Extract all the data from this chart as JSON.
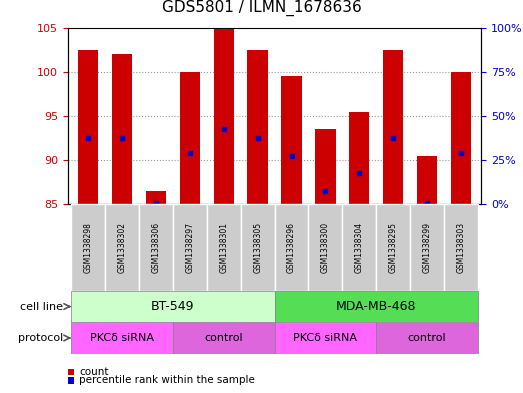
{
  "title": "GDS5801 / ILMN_1678636",
  "samples": [
    "GSM1338298",
    "GSM1338302",
    "GSM1338306",
    "GSM1338297",
    "GSM1338301",
    "GSM1338305",
    "GSM1338296",
    "GSM1338300",
    "GSM1338304",
    "GSM1338295",
    "GSM1338299",
    "GSM1338303"
  ],
  "bar_heights": [
    102.5,
    102.0,
    86.5,
    100.0,
    105.0,
    102.5,
    99.5,
    93.5,
    95.5,
    102.5,
    90.5,
    100.0
  ],
  "blue_positions": [
    92.5,
    92.5,
    85.2,
    90.8,
    93.5,
    92.5,
    90.5,
    86.5,
    88.5,
    92.5,
    85.2,
    90.8
  ],
  "ylim": [
    85,
    105
  ],
  "yticks_left": [
    85,
    90,
    95,
    100,
    105
  ],
  "bar_color": "#cc0000",
  "blue_color": "#0000cc",
  "cell_line_labels": [
    "BT-549",
    "MDA-MB-468"
  ],
  "cell_line_color_bt549": "#ccffcc",
  "cell_line_color_mda": "#55dd55",
  "protocol_groups": [
    {
      "label": "PKCδ siRNA",
      "span": [
        0,
        2
      ],
      "color": "#ff66ff"
    },
    {
      "label": "control",
      "span": [
        3,
        5
      ],
      "color": "#dd66dd"
    },
    {
      "label": "PKCδ siRNA",
      "span": [
        6,
        8
      ],
      "color": "#ff66ff"
    },
    {
      "label": "control",
      "span": [
        9,
        11
      ],
      "color": "#dd66dd"
    }
  ],
  "bg_color": "#ffffff",
  "grid_color": "#999999",
  "tick_color_left": "#cc0000",
  "tick_color_right": "#0000cc",
  "sample_bg_color": "#cccccc",
  "legend_items": [
    {
      "color": "#cc0000",
      "label": "count"
    },
    {
      "color": "#0000cc",
      "label": "percentile rank within the sample"
    }
  ]
}
